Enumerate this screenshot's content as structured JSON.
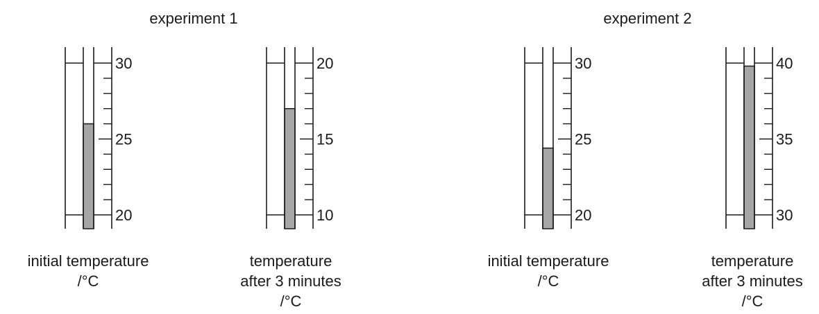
{
  "experiments": [
    {
      "title": "experiment 1",
      "thermometers": [
        {
          "role": "initial",
          "scale_labels": [
            "30",
            "25",
            "20"
          ],
          "scale_max": 30,
          "scale_min": 20,
          "reading": 26,
          "caption": [
            "initial temperature",
            "/°C"
          ]
        },
        {
          "role": "after",
          "scale_labels": [
            "20",
            "15",
            "10"
          ],
          "scale_max": 20,
          "scale_min": 10,
          "reading": 17,
          "caption": [
            "temperature",
            "after 3 minutes",
            "/°C"
          ]
        }
      ]
    },
    {
      "title": "experiment 2",
      "thermometers": [
        {
          "role": "initial",
          "scale_labels": [
            "30",
            "25",
            "20"
          ],
          "scale_max": 30,
          "scale_min": 20,
          "reading": 24.4,
          "caption": [
            "initial temperature",
            "/°C"
          ]
        },
        {
          "role": "after",
          "scale_labels": [
            "40",
            "35",
            "30"
          ],
          "scale_max": 40,
          "scale_min": 30,
          "reading": 39.8,
          "caption": [
            "temperature",
            "after 3 minutes",
            "/°C"
          ]
        }
      ]
    }
  ],
  "colors": {
    "liquid": "#a6a6a6",
    "stroke": "#1a1a1a"
  }
}
